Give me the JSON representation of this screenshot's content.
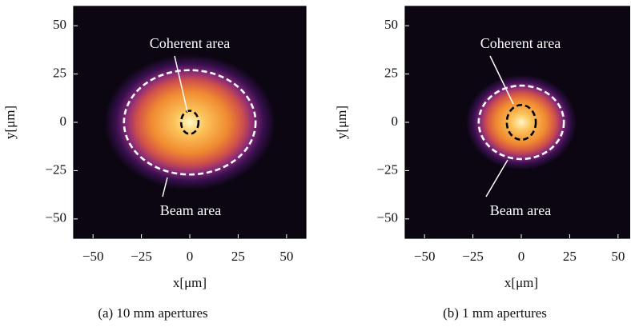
{
  "chart_data": [
    {
      "type": "heatmap",
      "caption": "(a) 10 mm apertures",
      "xlabel": "x[μm]",
      "ylabel": "y[μm]",
      "xlim": [
        -60,
        60
      ],
      "ylim": [
        -60,
        60
      ],
      "xticks": [
        {
          "value": -50,
          "label": "−50"
        },
        {
          "value": -25,
          "label": "−25"
        },
        0,
        25,
        50
      ],
      "yticks": [
        {
          "value": -50,
          "label": "−50"
        },
        {
          "value": -25,
          "label": "−25"
        },
        0,
        25,
        50
      ],
      "ellipses": [
        {
          "label": "Beam area",
          "center": [
            0,
            0
          ],
          "width": 68,
          "height": 54,
          "color": "#ffffff"
        },
        {
          "label": "Coherent area",
          "center": [
            0,
            0
          ],
          "width": 9,
          "height": 12,
          "color": "#000000"
        }
      ]
    },
    {
      "type": "heatmap",
      "caption": "(b) 1 mm apertures",
      "xlabel": "x[μm]",
      "ylabel": "y[μm]",
      "xlim": [
        -60,
        60
      ],
      "ylim": [
        -60,
        60
      ],
      "xticks": [
        {
          "value": -50,
          "label": "−50"
        },
        {
          "value": -25,
          "label": "−25"
        },
        0,
        25,
        50
      ],
      "yticks": [
        {
          "value": -50,
          "label": "−50"
        },
        {
          "value": -25,
          "label": "−25"
        },
        0,
        25,
        50
      ],
      "ellipses": [
        {
          "label": "Beam area",
          "center": [
            0,
            0
          ],
          "width": 44,
          "height": 38,
          "color": "#ffffff"
        },
        {
          "label": "Coherent area",
          "center": [
            0,
            0
          ],
          "width": 15,
          "height": 18,
          "color": "#000000"
        }
      ]
    }
  ]
}
